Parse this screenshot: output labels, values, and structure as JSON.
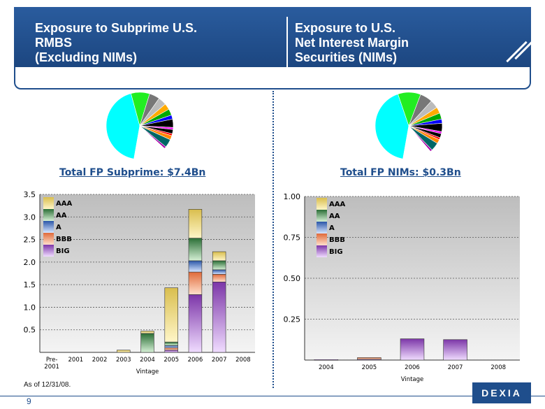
{
  "header": {
    "left_title": "Exposure to Subprime U.S.\nRMBS\n(Excluding NIMs)",
    "right_title": "Exposure to U.S.\nNet Interest Margin\nSecurities (NIMs)"
  },
  "left_total": "Total FP Subprime: $7.4Bn",
  "right_total": "Total FP NIMs: $0.3Bn",
  "footnote": "As of 12/31/08.",
  "page_number": "9",
  "logo": "DEXIA",
  "colors": {
    "header_bg": "#1f4e8c",
    "AAA": "#e9d77a",
    "AA": "#3d8a4a",
    "A": "#4a78c8",
    "BBB": "#f08a5a",
    "BIG": "#9a56c2"
  },
  "pie_colors": [
    "#00ffff",
    "#22ee22",
    "#777777",
    "#bbbbbb",
    "#ffaa00",
    "#00aa00",
    "#0000ff",
    "#000000",
    "#ff00ff",
    "#000000",
    "#ff0000",
    "#ff8800",
    "#006666",
    "#aa00aa",
    "#ffffff"
  ],
  "chart_data": [
    {
      "type": "pie",
      "title": "",
      "values": [
        43,
        9,
        5,
        4,
        3,
        3,
        2,
        4,
        1,
        2,
        1,
        2,
        4,
        1,
        16
      ]
    },
    {
      "type": "pie",
      "title": "",
      "values": [
        42,
        11,
        6,
        4,
        3,
        3,
        2,
        4,
        1,
        2,
        1,
        2,
        4,
        1,
        14
      ]
    },
    {
      "type": "bar",
      "stacked": true,
      "categories": [
        "Pre-2001",
        "2001",
        "2002",
        "2003",
        "2004",
        "2005",
        "2006",
        "2007",
        "2008"
      ],
      "xlabel": "Vintage",
      "ylabel": "",
      "ylim": [
        0,
        3.5
      ],
      "yticks": [
        "0.5",
        "1.0",
        "1.5",
        "2.0",
        "2.5",
        "3.0",
        "3.5"
      ],
      "grid": true,
      "legend": "top-left",
      "series": [
        {
          "name": "BIG",
          "values": [
            0,
            0,
            0,
            0,
            0,
            0.05,
            1.28,
            1.56,
            0
          ]
        },
        {
          "name": "BBB",
          "values": [
            0,
            0,
            0,
            0,
            0,
            0.05,
            0.5,
            0.17,
            0
          ]
        },
        {
          "name": "A",
          "values": [
            0,
            0,
            0,
            0,
            0,
            0.05,
            0.25,
            0.1,
            0
          ]
        },
        {
          "name": "AA",
          "values": [
            0,
            0,
            0,
            0,
            0.42,
            0.08,
            0.5,
            0.2,
            0
          ]
        },
        {
          "name": "AAA",
          "values": [
            0,
            0,
            0,
            0.05,
            0.05,
            1.2,
            0.64,
            0.2,
            0
          ]
        }
      ]
    },
    {
      "type": "bar",
      "stacked": true,
      "categories": [
        "2004",
        "2005",
        "2006",
        "2007",
        "2008"
      ],
      "xlabel": "Vintage",
      "ylabel": "",
      "ylim": [
        0,
        1.0
      ],
      "yticks": [
        "0.25",
        "0.50",
        "0.75",
        "1.00"
      ],
      "grid": true,
      "legend": "top-left",
      "series": [
        {
          "name": "BIG",
          "values": [
            0.003,
            0.005,
            0.13,
            0.125,
            0
          ]
        },
        {
          "name": "BBB",
          "values": [
            0,
            0.01,
            0,
            0,
            0
          ]
        },
        {
          "name": "A",
          "values": [
            0,
            0,
            0,
            0,
            0
          ]
        },
        {
          "name": "AA",
          "values": [
            0,
            0,
            0,
            0,
            0
          ]
        },
        {
          "name": "AAA",
          "values": [
            0,
            0,
            0,
            0,
            0
          ]
        }
      ]
    }
  ]
}
